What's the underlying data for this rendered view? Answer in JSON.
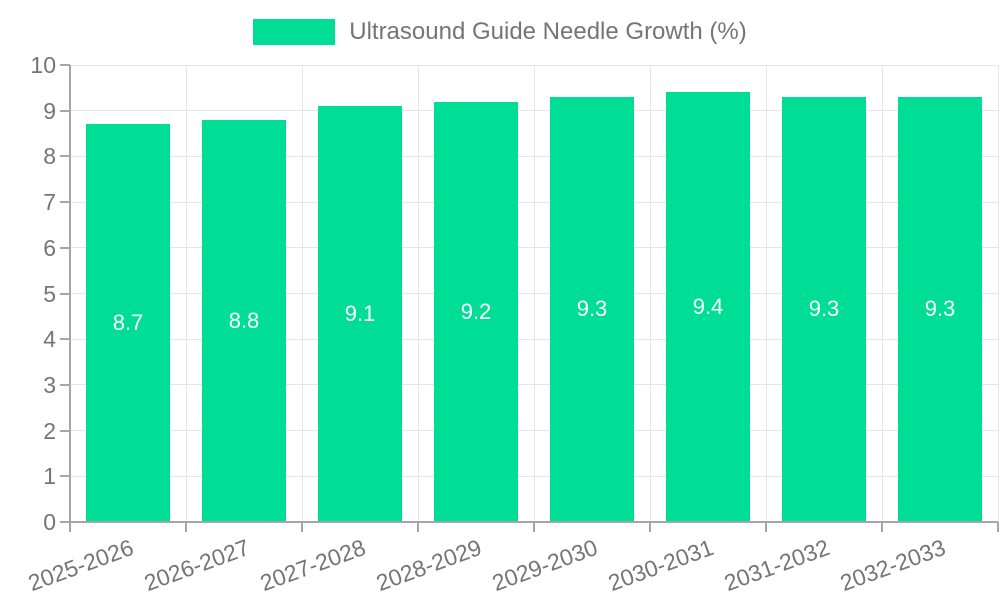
{
  "legend": {
    "label": "Ultrasound Guide Needle Growth (%)"
  },
  "chart_data": {
    "type": "bar",
    "title": "Ultrasound Guide Needle Growth (%)",
    "categories": [
      "2025-2026",
      "2026-2027",
      "2027-2028",
      "2028-2029",
      "2029-2030",
      "2030-2031",
      "2031-2032",
      "2032-2033"
    ],
    "values": [
      8.7,
      8.8,
      9.1,
      9.2,
      9.3,
      9.4,
      9.3,
      9.3
    ],
    "xlabel": "",
    "ylabel": "",
    "ylim": [
      0,
      10
    ],
    "ytick_step": 1,
    "yticks": [
      "0",
      "1",
      "2",
      "3",
      "4",
      "5",
      "6",
      "7",
      "8",
      "9",
      "10"
    ],
    "grid": true,
    "legend_position": "top",
    "value_labels": "inside-center",
    "xlabel_rotation_deg": -20
  },
  "colors": {
    "bar": "#00DE96",
    "bar_value_label": "#ffffff",
    "axis_text": "#757575",
    "axis_line": "#a6a6a6",
    "gridline": "#e6e6e6",
    "background": "#ffffff"
  }
}
